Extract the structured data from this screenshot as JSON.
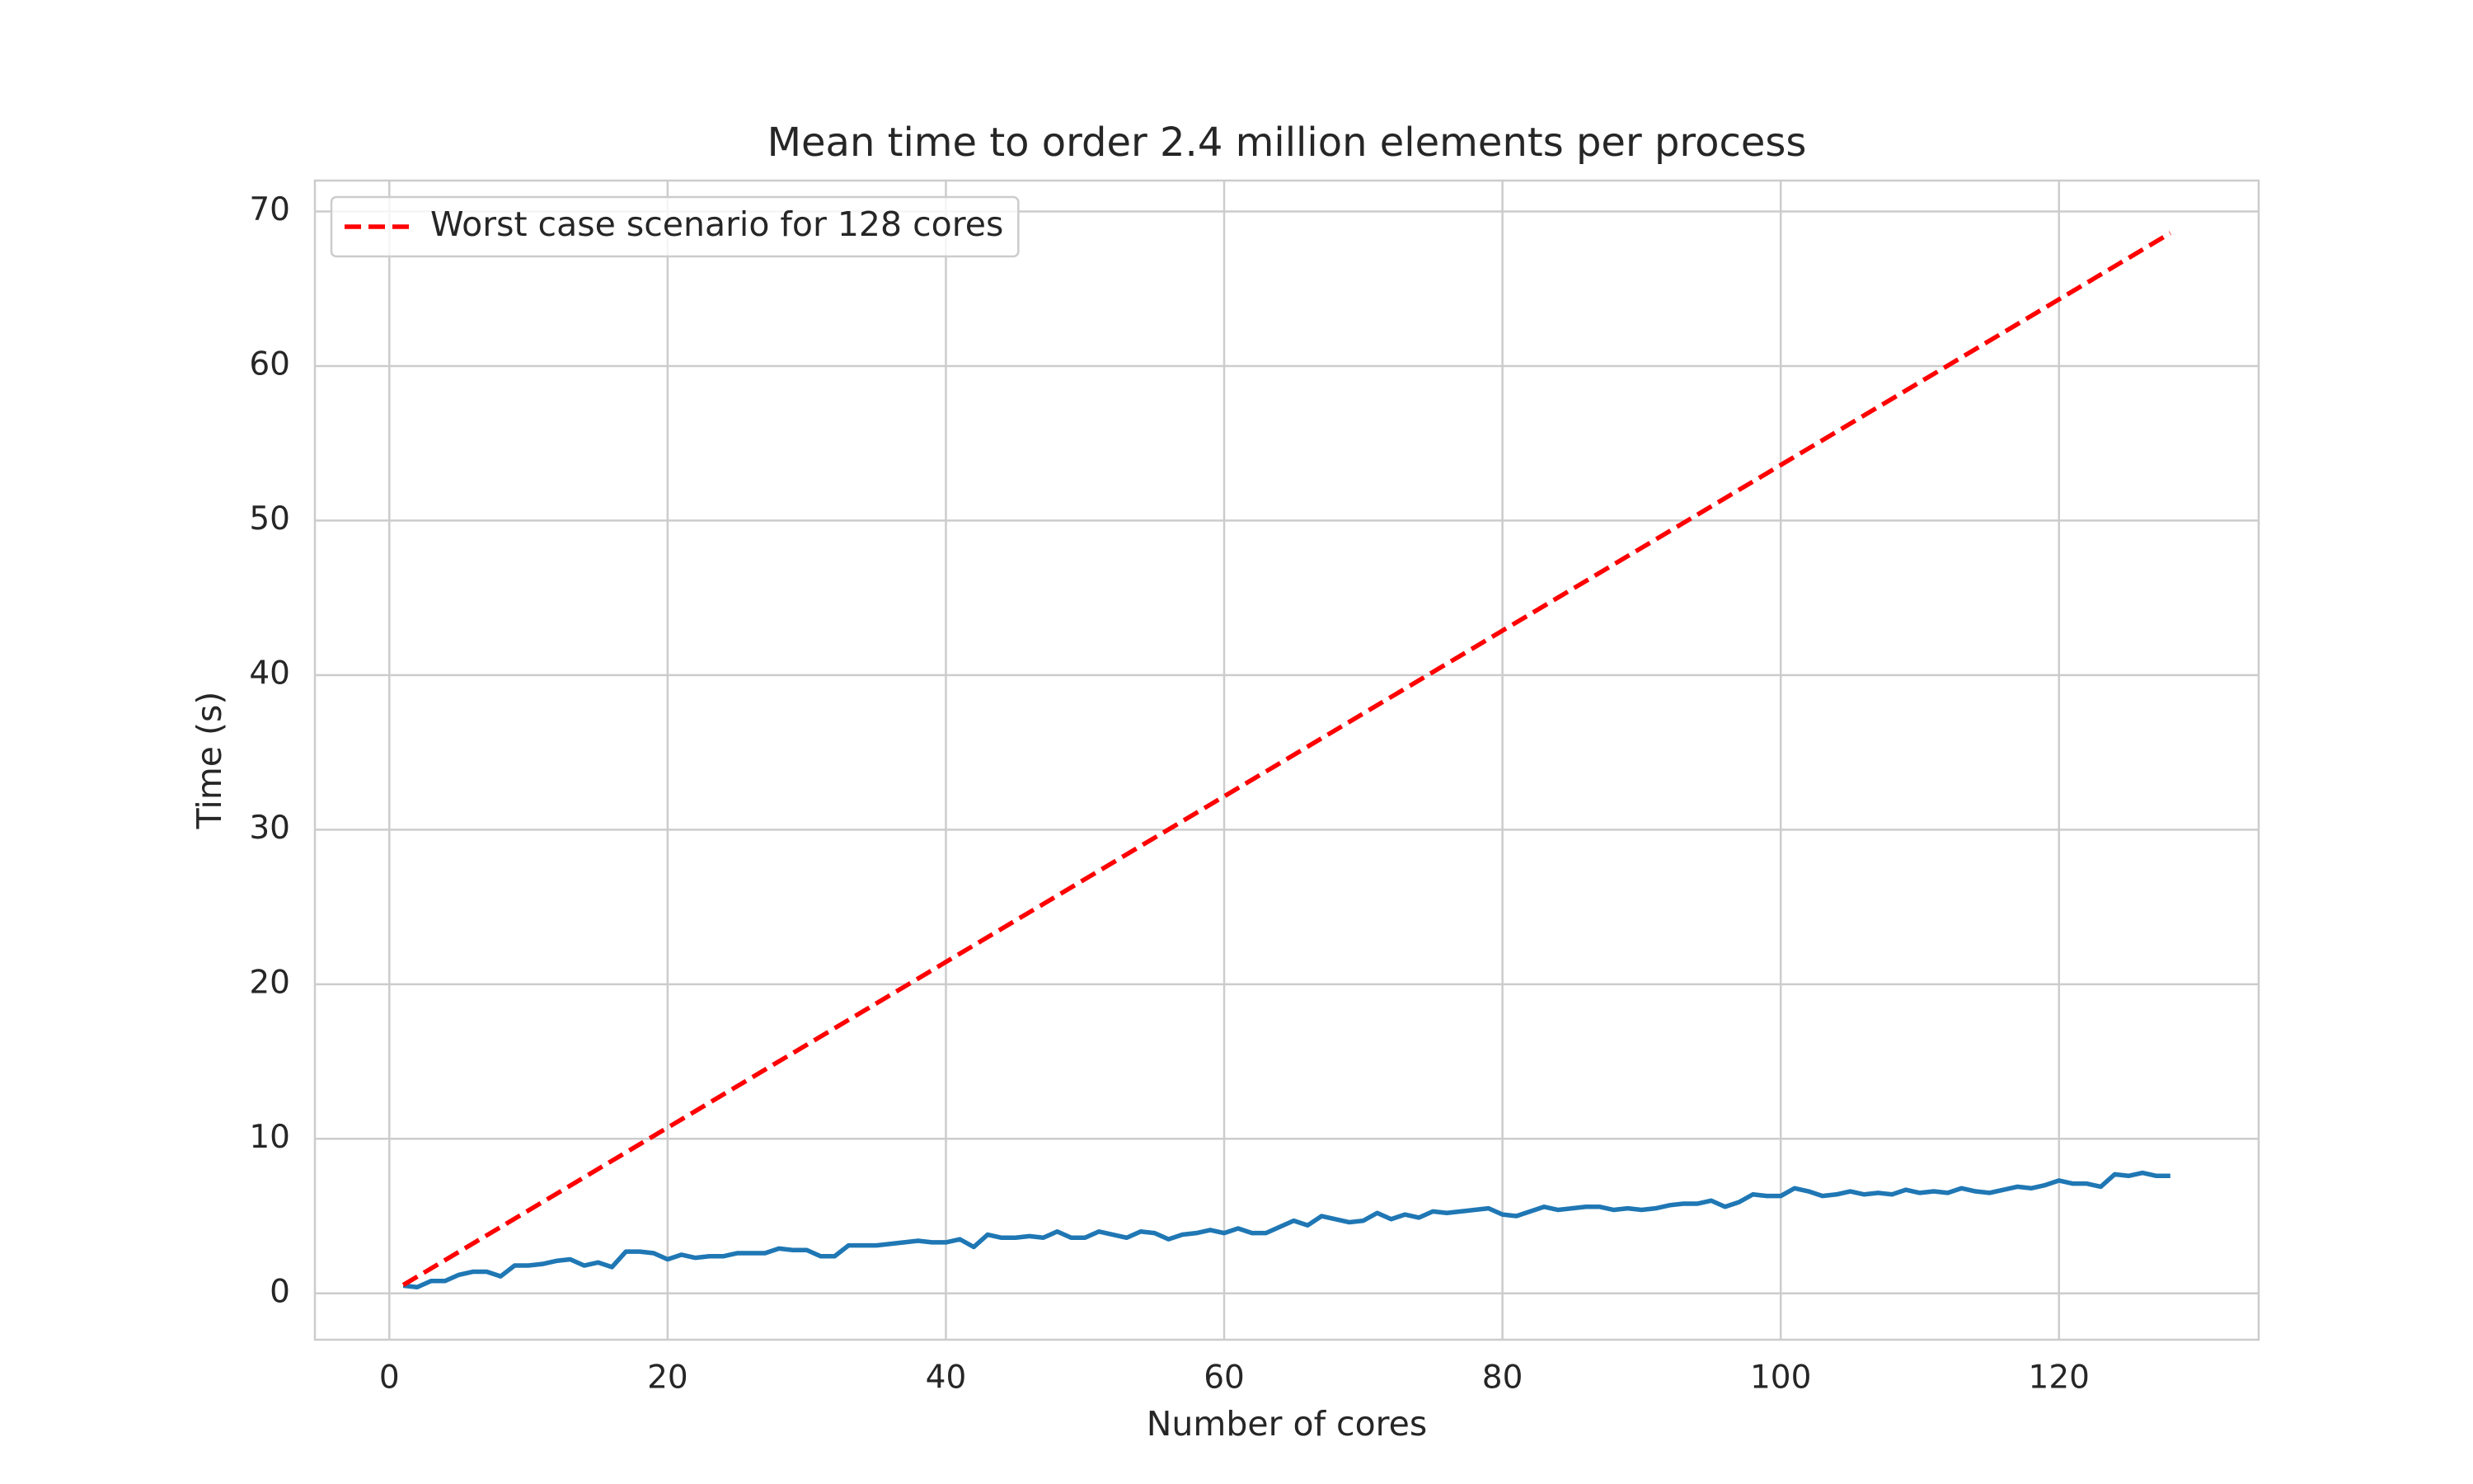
{
  "chart_data": {
    "type": "line",
    "title": "Mean time to order 2.4 million elements per process",
    "xlabel": "Number of cores",
    "ylabel": "Time (s)",
    "xlim": [
      -5.35,
      134.35
    ],
    "ylim": [
      -3.0,
      72.0
    ],
    "xticks": [
      0,
      20,
      40,
      60,
      80,
      100,
      120
    ],
    "yticks": [
      0,
      10,
      20,
      30,
      40,
      50,
      60,
      70
    ],
    "grid": true,
    "legend": "upper left",
    "series": [
      {
        "color": "#1f77b4",
        "dash": false,
        "x": [
          1,
          2,
          3,
          4,
          5,
          6,
          7,
          8,
          9,
          10,
          11,
          12,
          13,
          14,
          15,
          16,
          17,
          18,
          19,
          20,
          21,
          22,
          23,
          24,
          25,
          26,
          27,
          28,
          29,
          30,
          31,
          32,
          33,
          34,
          35,
          36,
          37,
          38,
          39,
          40,
          41,
          42,
          43,
          44,
          45,
          46,
          47,
          48,
          49,
          50,
          51,
          52,
          53,
          54,
          55,
          56,
          57,
          58,
          59,
          60,
          61,
          62,
          63,
          64,
          65,
          66,
          67,
          68,
          69,
          70,
          71,
          72,
          73,
          74,
          75,
          76,
          77,
          78,
          79,
          80,
          81,
          82,
          83,
          84,
          85,
          86,
          87,
          88,
          89,
          90,
          91,
          92,
          93,
          94,
          95,
          96,
          97,
          98,
          99,
          100,
          101,
          102,
          103,
          104,
          105,
          106,
          107,
          108,
          109,
          110,
          111,
          112,
          113,
          114,
          115,
          116,
          117,
          118,
          119,
          120,
          121,
          122,
          123,
          124,
          125,
          126,
          127,
          128
        ],
        "values": [
          0.5,
          0.4,
          0.8,
          0.8,
          1.2,
          1.4,
          1.4,
          1.1,
          1.8,
          1.8,
          1.9,
          2.1,
          2.2,
          1.8,
          2.0,
          1.7,
          2.7,
          2.7,
          2.6,
          2.2,
          2.5,
          2.3,
          2.4,
          2.4,
          2.6,
          2.6,
          2.6,
          2.9,
          2.8,
          2.8,
          2.4,
          2.4,
          3.1,
          3.1,
          3.1,
          3.2,
          3.3,
          3.4,
          3.3,
          3.3,
          3.5,
          3.0,
          3.8,
          3.6,
          3.6,
          3.7,
          3.6,
          4.0,
          3.6,
          3.6,
          4.0,
          3.8,
          3.6,
          4.0,
          3.9,
          3.5,
          3.8,
          3.9,
          4.1,
          3.9,
          4.2,
          3.9,
          3.9,
          4.3,
          4.7,
          4.4,
          5.0,
          4.8,
          4.6,
          4.7,
          5.2,
          4.8,
          5.1,
          4.9,
          5.3,
          5.2,
          5.3,
          5.4,
          5.5,
          5.1,
          5.0,
          5.3,
          5.6,
          5.4,
          5.5,
          5.6,
          5.6,
          5.4,
          5.5,
          5.4,
          5.5,
          5.7,
          5.8,
          5.8,
          6.0,
          5.6,
          5.9,
          6.4,
          6.3,
          6.3,
          6.8,
          6.6,
          6.3,
          6.4,
          6.6,
          6.4,
          6.5,
          6.4,
          6.7,
          6.5,
          6.6,
          6.5,
          6.8,
          6.6,
          6.5,
          6.7,
          6.9,
          6.8,
          7.0,
          7.3,
          7.1,
          7.1,
          6.9,
          7.7,
          7.6,
          7.8,
          7.6,
          7.6
        ]
      },
      {
        "name": "Worst case scenario for 128 cores",
        "color": "#ff0000",
        "dash": true,
        "x": [
          1,
          128
        ],
        "values": [
          0.54,
          68.6
        ]
      }
    ]
  }
}
